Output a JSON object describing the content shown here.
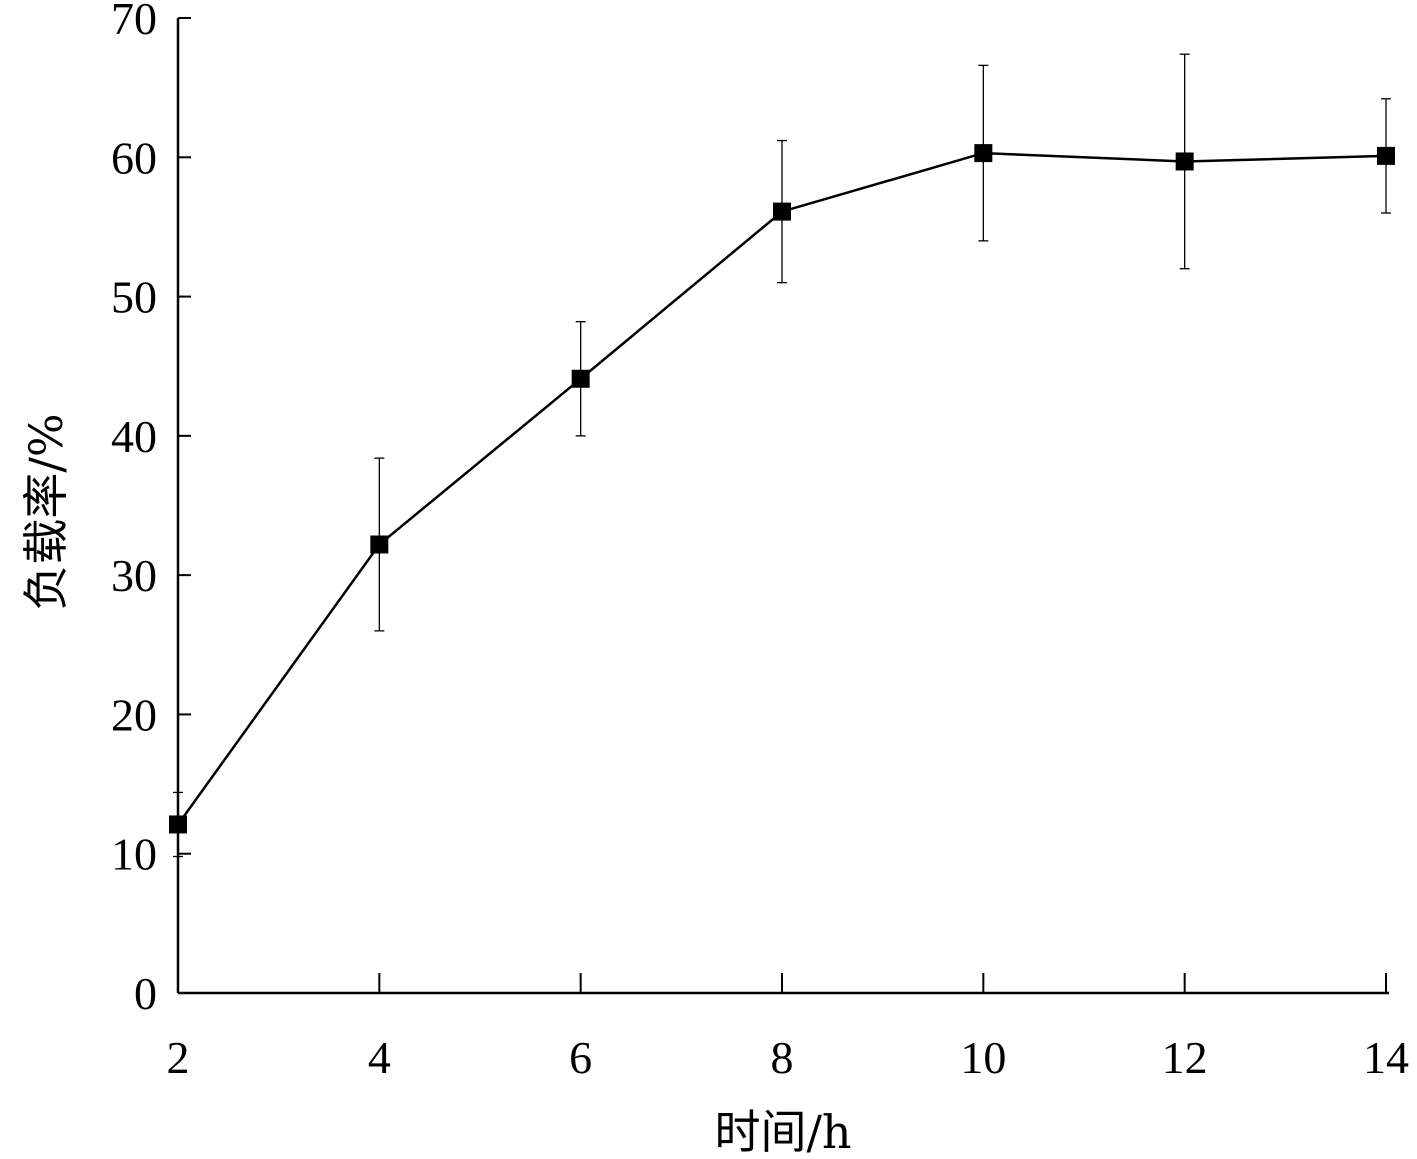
{
  "chart_data": {
    "type": "line",
    "xlabel": "时间/h",
    "ylabel": "负载率/%",
    "xlim": [
      2,
      14
    ],
    "ylim": [
      0,
      70
    ],
    "x_ticks": [
      "2",
      "4",
      "6",
      "8",
      "10",
      "12",
      "14"
    ],
    "y_ticks": [
      "0",
      "10",
      "20",
      "30",
      "40",
      "50",
      "60",
      "70"
    ],
    "grid": false,
    "legend": "none",
    "marker": "filled-square",
    "series": [
      {
        "x": [
          2,
          4,
          6,
          8,
          10,
          12,
          14
        ],
        "values": [
          12.1,
          32.2,
          44.1,
          56.1,
          60.3,
          59.7,
          60.1
        ],
        "error": [
          2.3,
          6.2,
          4.1,
          5.1,
          6.3,
          7.7,
          4.1
        ],
        "color": "#000000"
      }
    ]
  }
}
